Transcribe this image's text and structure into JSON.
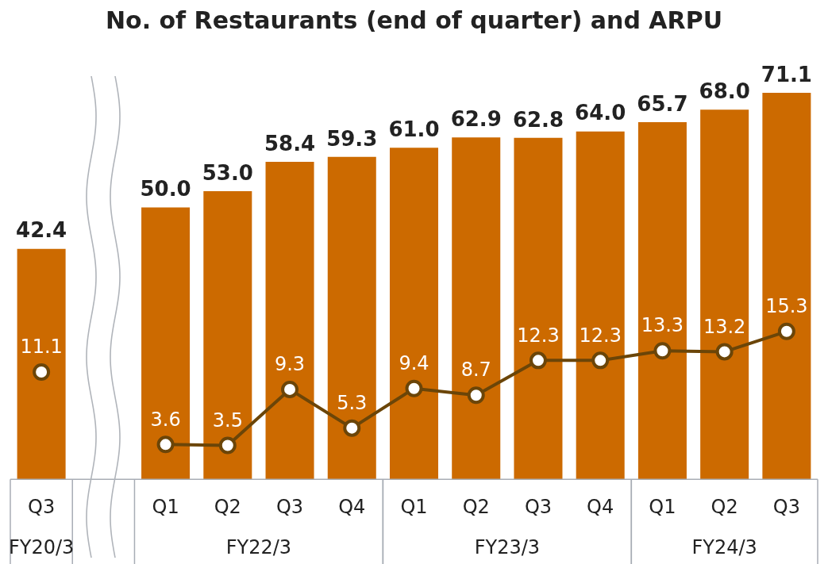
{
  "chart_data": {
    "type": "bar",
    "title": "No. of Restaurants (end of quarter) and ARPU",
    "categories": [
      "Q3",
      null,
      "Q1",
      "Q2",
      "Q3",
      "Q4",
      "Q1",
      "Q2",
      "Q3",
      "Q4",
      "Q1",
      "Q2",
      "Q3"
    ],
    "annotations": [
      "FY20/3",
      "FY22/3",
      "FY23/3",
      "FY24/3"
    ],
    "series": [
      {
        "color": "#cc6a00",
        "values": [
          42.4,
          null,
          50.0,
          53.0,
          58.4,
          59.3,
          61.0,
          62.9,
          62.8,
          64.0,
          65.7,
          68.0,
          71.1
        ],
        "value_labels": [
          "42.4",
          null,
          "50.0",
          "53.0",
          "58.4",
          "59.3",
          "61.0",
          "62.9",
          "62.8",
          "64.0",
          "65.7",
          "68.0",
          "71.1"
        ]
      },
      {
        "type": "line",
        "axis": "y2",
        "color": "#6b4508",
        "values": [
          11.1,
          null,
          3.6,
          3.5,
          9.3,
          5.3,
          9.4,
          8.7,
          12.3,
          12.3,
          13.3,
          13.2,
          15.3
        ],
        "value_labels": [
          "11.1",
          null,
          "3.6",
          "3.5",
          "9.3",
          "5.3",
          "9.4",
          "8.7",
          "12.3",
          "12.3",
          "13.3",
          "13.2",
          "15.3"
        ]
      }
    ],
    "marker": "circle",
    "line_style": "solid"
  }
}
